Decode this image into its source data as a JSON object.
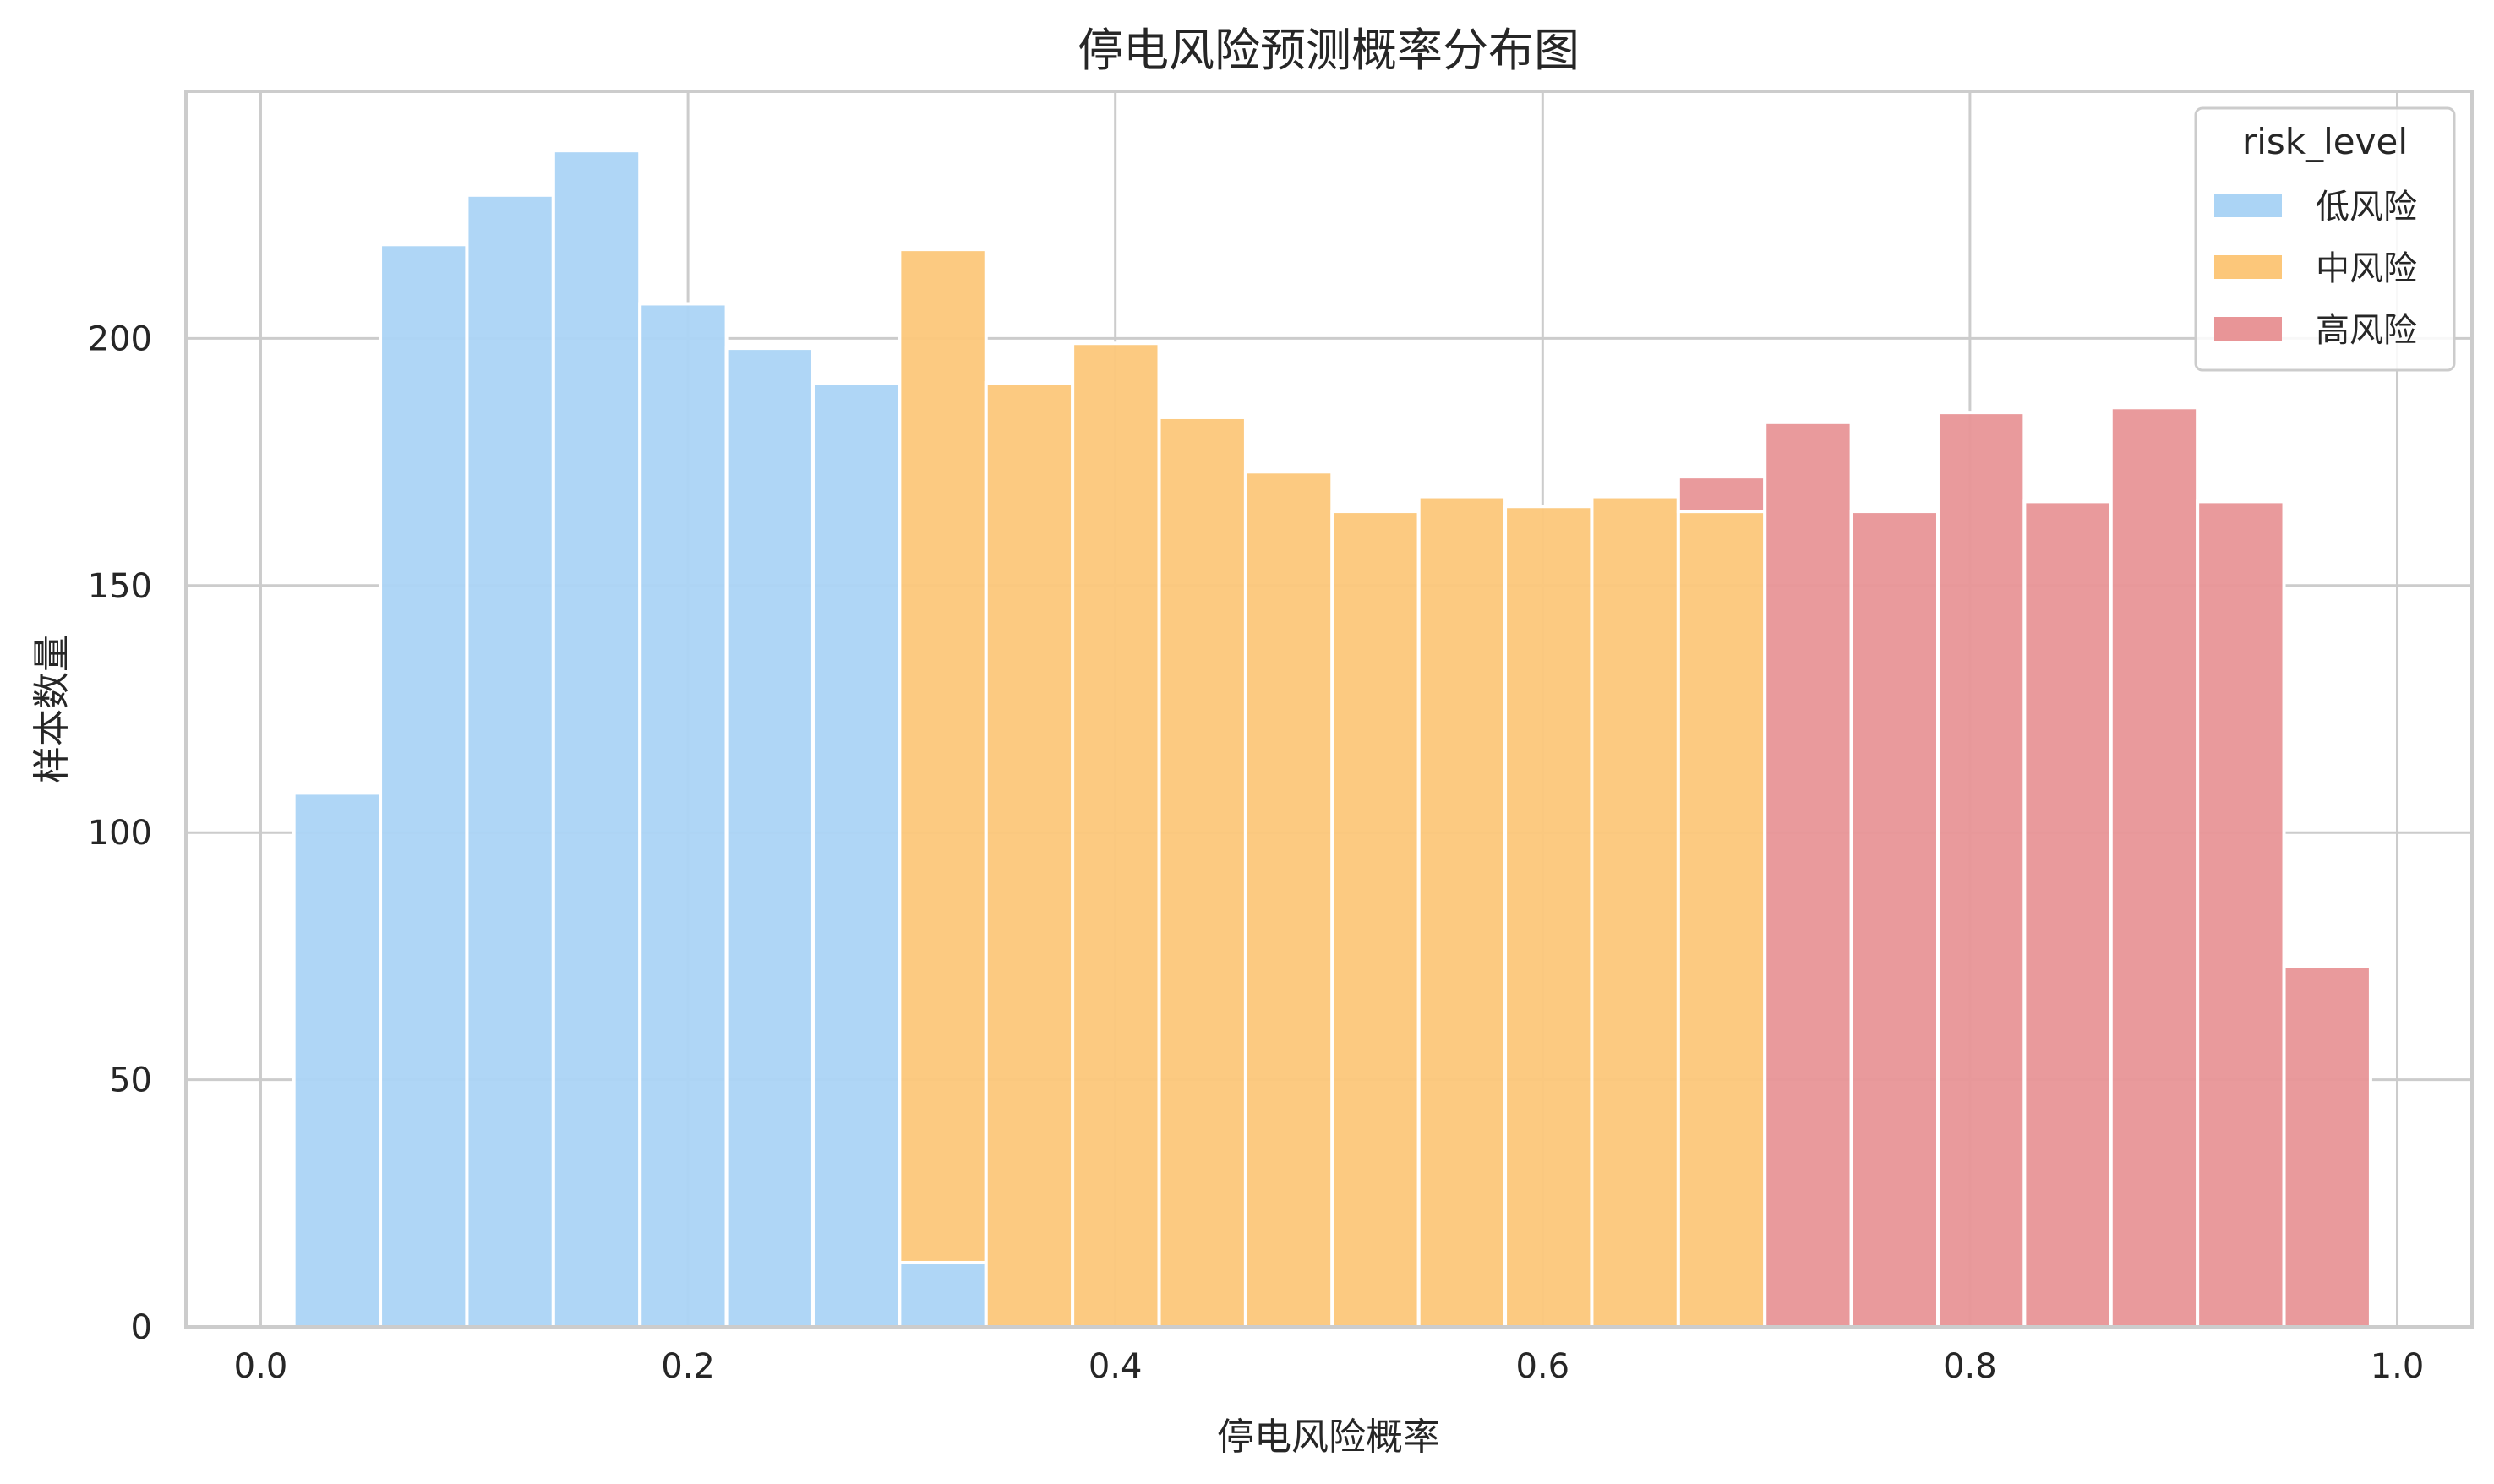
{
  "chart_data": {
    "type": "histogram",
    "title": "停电风险预测概率分布图",
    "xlabel": "停电风险概率",
    "ylabel": "样本数量",
    "xlim": [
      -0.035,
      1.035
    ],
    "ylim": [
      0,
      250
    ],
    "xticks": [
      0.0,
      0.2,
      0.4,
      0.6,
      0.8,
      1.0
    ],
    "xtick_labels": [
      "0.0",
      "0.2",
      "0.4",
      "0.6",
      "0.8",
      "1.0"
    ],
    "yticks": [
      0,
      50,
      100,
      150,
      200
    ],
    "ytick_labels": [
      "0",
      "50",
      "100",
      "150",
      "200"
    ],
    "grid": true,
    "stacked": true,
    "bin_edges": [
      0.0155,
      0.056,
      0.0965,
      0.137,
      0.1775,
      0.218,
      0.2585,
      0.299,
      0.3395,
      0.38,
      0.4205,
      0.461,
      0.5015,
      0.542,
      0.5825,
      0.623,
      0.6635,
      0.704,
      0.7445,
      0.785,
      0.8255,
      0.866,
      0.9065,
      0.947,
      0.9875
    ],
    "legend": {
      "title": "risk_level",
      "position": "top-right"
    },
    "series": [
      {
        "name": "低风险",
        "color": "#abd4f5",
        "values": [
          108,
          219,
          229,
          238,
          207,
          198,
          191,
          13,
          0,
          0,
          0,
          0,
          0,
          0,
          0,
          0,
          0,
          0,
          0,
          0,
          0,
          0,
          0,
          0
        ]
      },
      {
        "name": "中风险",
        "color": "#fcc77a",
        "values": [
          0,
          0,
          0,
          0,
          0,
          0,
          0,
          205,
          191,
          199,
          184,
          173,
          165,
          168,
          166,
          168,
          165,
          0,
          0,
          0,
          0,
          0,
          0,
          0
        ]
      },
      {
        "name": "高风险",
        "color": "#e89597",
        "values": [
          0,
          0,
          0,
          0,
          0,
          0,
          0,
          0,
          0,
          0,
          0,
          0,
          0,
          0,
          0,
          0,
          7,
          183,
          165,
          185,
          167,
          186,
          167,
          73
        ]
      }
    ]
  }
}
